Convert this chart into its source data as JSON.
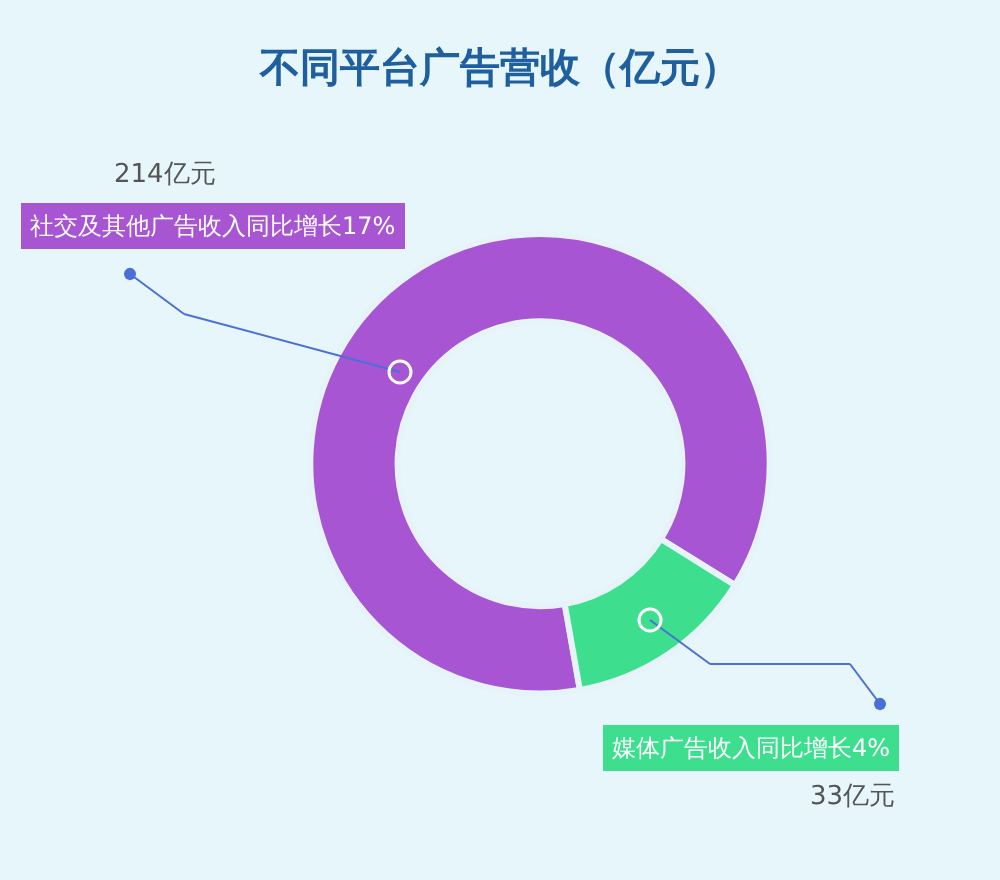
{
  "chart_data": {
    "type": "donut",
    "title": "不同平台广告营收（亿元）",
    "categories": [
      "社交及其他广告收入同比增长17%",
      "媒体广告收入同比增长4%"
    ],
    "values": [
      214,
      33
    ],
    "colors": [
      "#a855d4",
      "#3ddf8f"
    ],
    "value_labels": [
      "214亿元",
      "33亿元"
    ],
    "legend": false
  }
}
